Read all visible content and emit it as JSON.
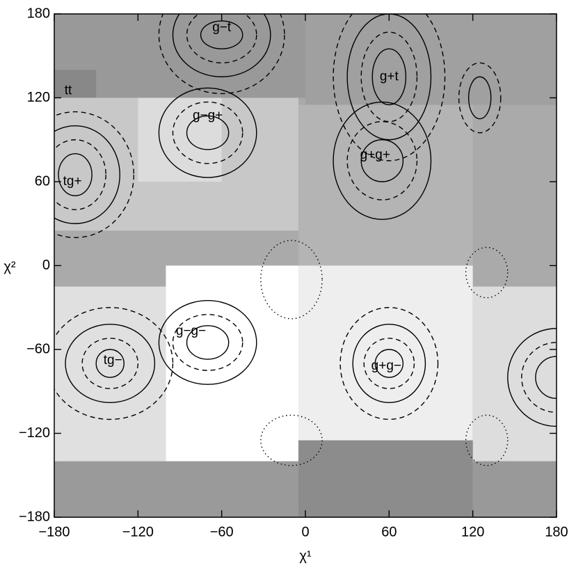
{
  "chart_data": {
    "type": "contour",
    "xlabel": "χ¹",
    "ylabel": "χ²",
    "xlim": [
      -180,
      180
    ],
    "ylim": [
      -180,
      180
    ],
    "xticks": [
      {
        "value": -180,
        "label": "−180"
      },
      {
        "value": -120,
        "label": "−120"
      },
      {
        "value": -60,
        "label": "−60"
      },
      0,
      60,
      120,
      180
    ],
    "yticks": [
      {
        "value": -180,
        "label": "−180"
      },
      {
        "value": -120,
        "label": "−120"
      },
      {
        "value": -60,
        "label": "−60"
      },
      0,
      60,
      120,
      180
    ],
    "regions": [
      {
        "x": [
          -180,
          180
        ],
        "y": [
          -180,
          180
        ],
        "color": "#aaaaaa"
      },
      {
        "x": [
          -180,
          0
        ],
        "y": [
          120,
          180
        ],
        "color": "#999999"
      },
      {
        "x": [
          -180,
          -150
        ],
        "y": [
          120,
          140
        ],
        "color": "#888888"
      },
      {
        "x": [
          0,
          180
        ],
        "y": [
          115,
          180
        ],
        "color": "#a0a0a0"
      },
      {
        "x": [
          -180,
          -5
        ],
        "y": [
          25,
          120
        ],
        "color": "#c8c8c8"
      },
      {
        "x": [
          -120,
          -60
        ],
        "y": [
          60,
          120
        ],
        "color": "#dcdcdc"
      },
      {
        "x": [
          -5,
          120
        ],
        "y": [
          0,
          115
        ],
        "color": "#b4b4b4"
      },
      {
        "x": [
          -180,
          -100
        ],
        "y": [
          -140,
          -15
        ],
        "color": "#e0e0e0"
      },
      {
        "x": [
          -100,
          -5
        ],
        "y": [
          -140,
          0
        ],
        "color": "#ffffff"
      },
      {
        "x": [
          -5,
          120
        ],
        "y": [
          -125,
          0
        ],
        "color": "#eeeeee"
      },
      {
        "x": [
          120,
          180
        ],
        "y": [
          -140,
          -15
        ],
        "color": "#dddddd"
      },
      {
        "x": [
          -180,
          -5
        ],
        "y": [
          -180,
          -140
        ],
        "color": "#9a9a9a"
      },
      {
        "x": [
          -5,
          120
        ],
        "y": [
          -180,
          -125
        ],
        "color": "#8c8c8c"
      },
      {
        "x": [
          120,
          180
        ],
        "y": [
          -180,
          -140
        ],
        "color": "#999999"
      }
    ],
    "contours": [
      {
        "center": [
          -60,
          165
        ],
        "radii": [
          [
            15,
            10
          ],
          [
            25,
            20
          ],
          [
            35,
            30
          ],
          [
            45,
            42
          ]
        ]
      },
      {
        "center": [
          60,
          135
        ],
        "radii": [
          [
            12,
            20
          ],
          [
            20,
            32
          ],
          [
            30,
            45
          ],
          [
            40,
            60
          ]
        ]
      },
      {
        "center": [
          -70,
          95
        ],
        "radii": [
          [
            15,
            12
          ],
          [
            25,
            22
          ],
          [
            35,
            32
          ]
        ]
      },
      {
        "center": [
          55,
          75
        ],
        "radii": [
          [
            15,
            15
          ],
          [
            25,
            28
          ],
          [
            35,
            42
          ]
        ]
      },
      {
        "center": [
          -165,
          65
        ],
        "radii": [
          [
            12,
            15
          ],
          [
            22,
            25
          ],
          [
            32,
            35
          ],
          [
            42,
            45
          ]
        ]
      },
      {
        "center": [
          -70,
          -55
        ],
        "radii": [
          [
            15,
            12
          ],
          [
            25,
            20
          ],
          [
            35,
            30
          ]
        ]
      },
      {
        "center": [
          -140,
          -70
        ],
        "radii": [
          [
            10,
            10
          ],
          [
            20,
            18
          ],
          [
            32,
            28
          ],
          [
            45,
            40
          ]
        ]
      },
      {
        "center": [
          60,
          -70
        ],
        "radii": [
          [
            10,
            10
          ],
          [
            18,
            18
          ],
          [
            26,
            28
          ],
          [
            35,
            40
          ]
        ]
      },
      {
        "center": [
          125,
          120
        ],
        "radii": [
          [
            8,
            15
          ],
          [
            15,
            25
          ]
        ]
      },
      {
        "center": [
          180,
          -80
        ],
        "radii": [
          [
            15,
            15
          ],
          [
            25,
            25
          ],
          [
            35,
            35
          ]
        ]
      }
    ],
    "dotted": [
      {
        "center": [
          -10,
          -10
        ],
        "radii": [
          22,
          28
        ]
      },
      {
        "center": [
          -10,
          -125
        ],
        "radii": [
          22,
          18
        ]
      },
      {
        "center": [
          130,
          -125
        ],
        "radii": [
          15,
          18
        ]
      },
      {
        "center": [
          130,
          -5
        ],
        "radii": [
          15,
          18
        ]
      }
    ],
    "annotations": [
      {
        "text": "g−t",
        "x": -60,
        "y": 170
      },
      {
        "text": "g+t",
        "x": 60,
        "y": 135
      },
      {
        "text": "tt",
        "x": -170,
        "y": 125
      },
      {
        "text": "g−g+",
        "x": -70,
        "y": 107
      },
      {
        "text": "g+g+",
        "x": 50,
        "y": 79
      },
      {
        "text": "tg+",
        "x": -167,
        "y": 60
      },
      {
        "text": "g−g−",
        "x": -82,
        "y": -47
      },
      {
        "text": "tg−",
        "x": -138,
        "y": -68
      },
      {
        "text": "g+g−",
        "x": 58,
        "y": -72
      }
    ]
  }
}
